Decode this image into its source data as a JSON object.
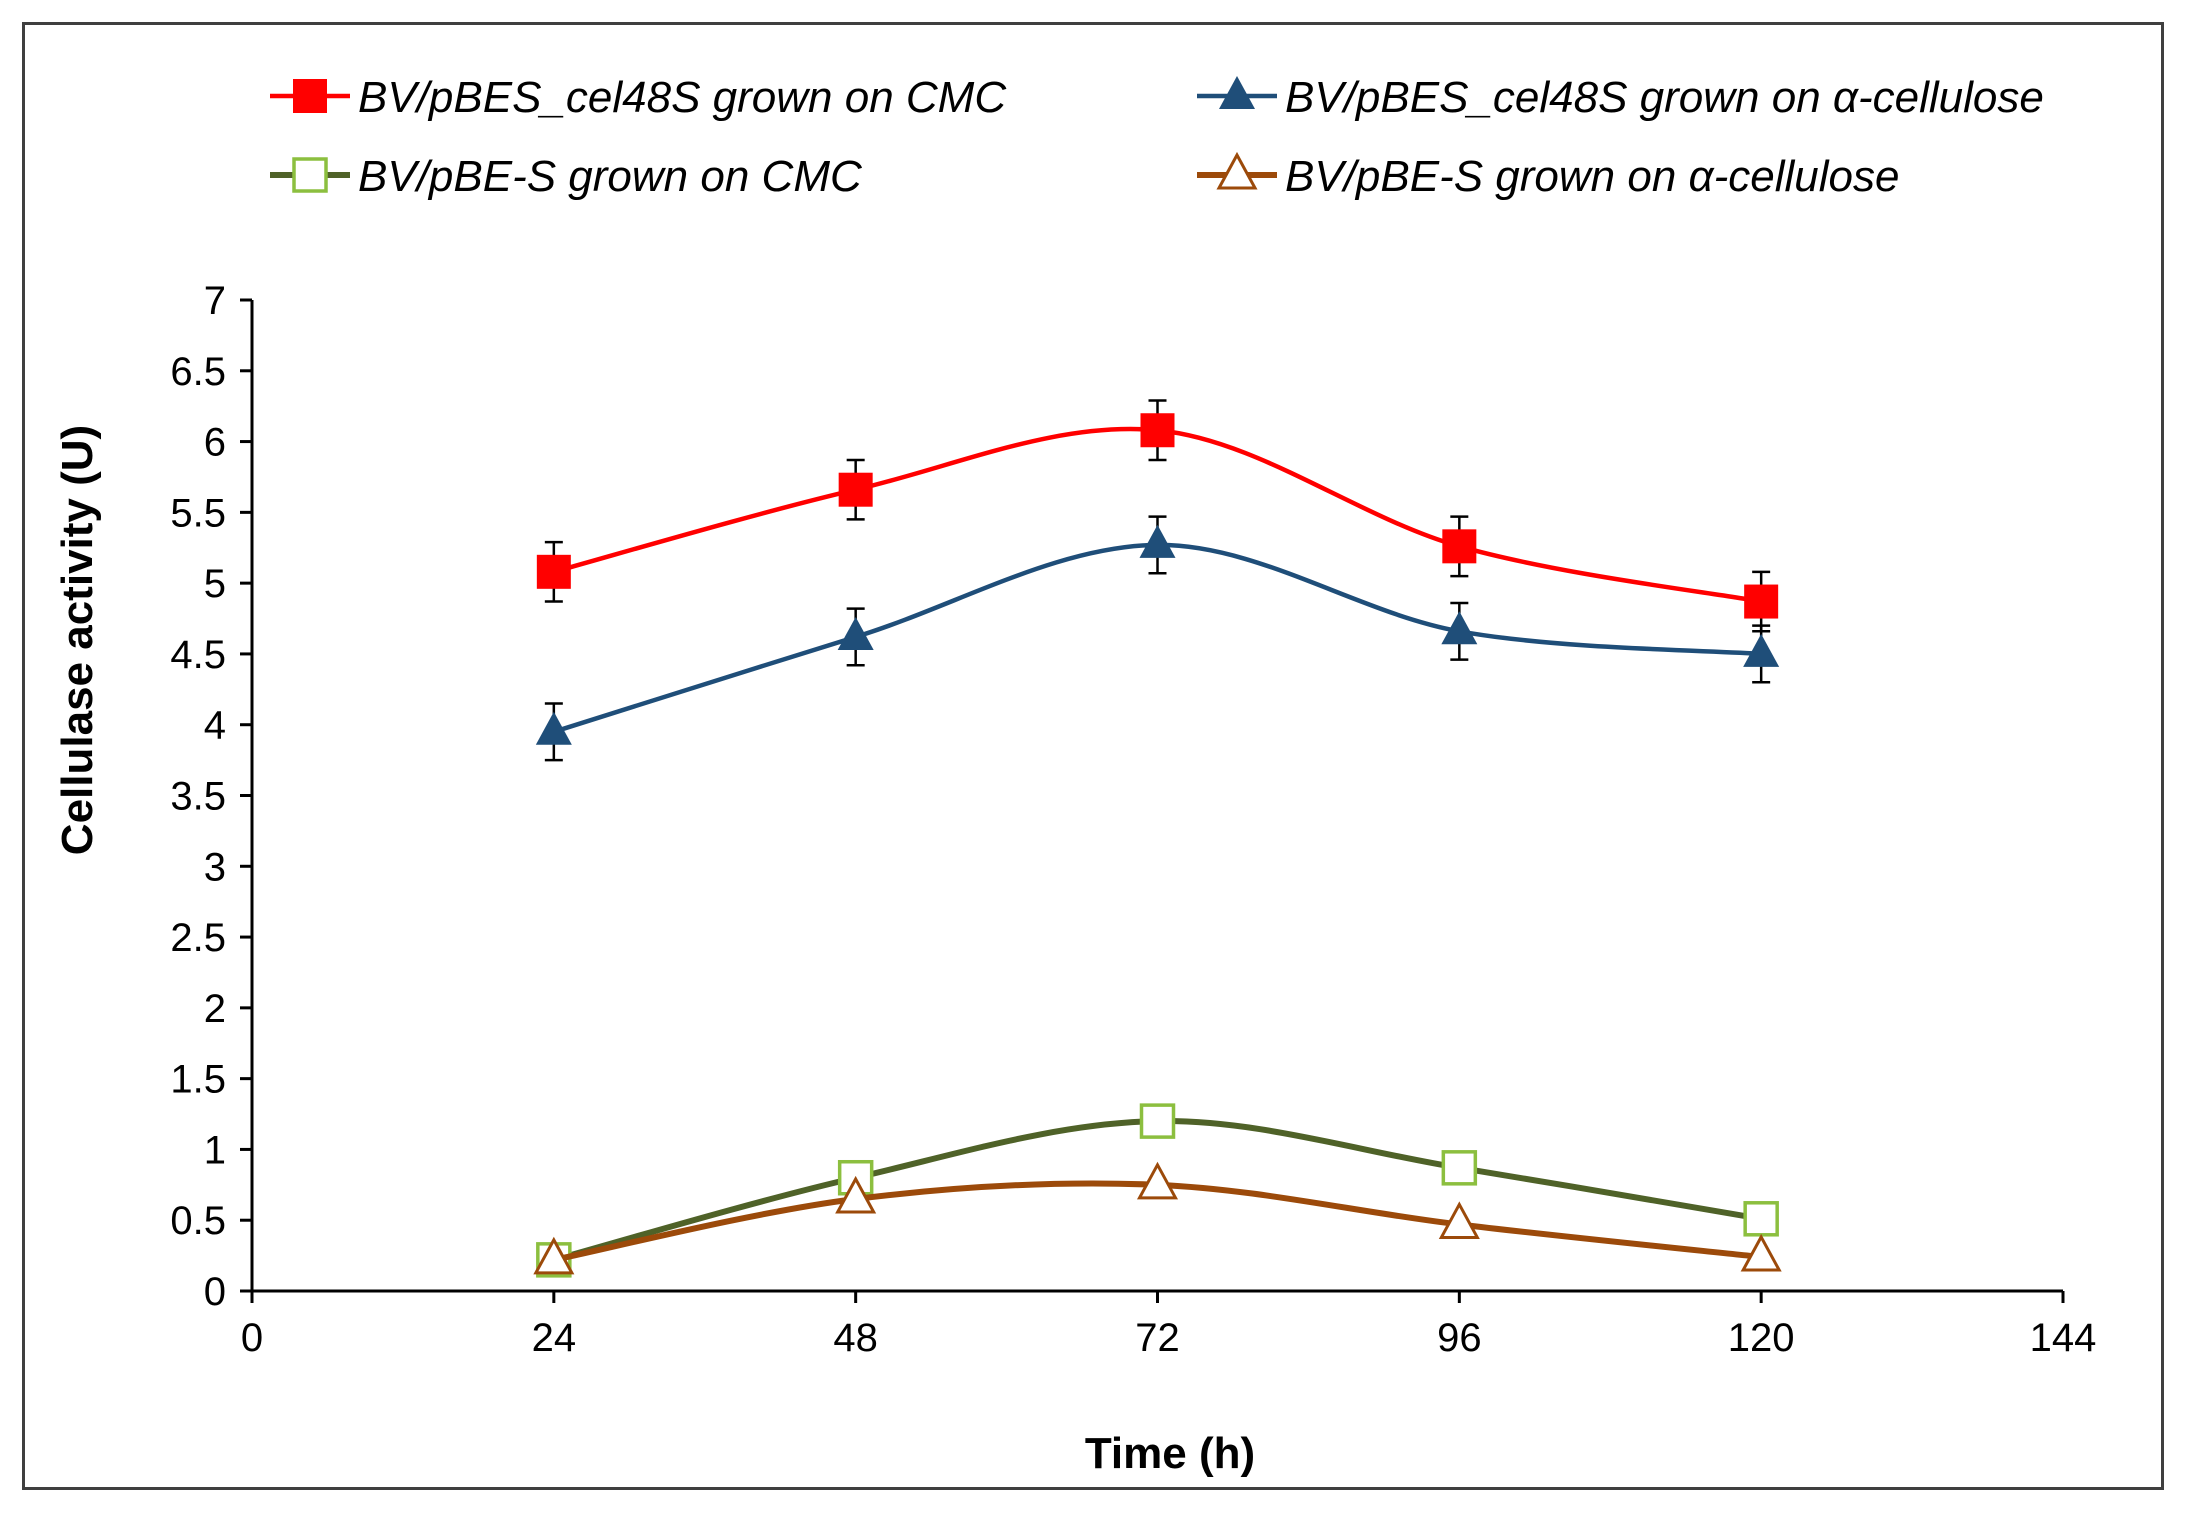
{
  "chart_data": {
    "type": "line",
    "title": "",
    "xlabel": "Time (h)",
    "ylabel": "Cellulase activity (U)",
    "xlim": [
      0,
      144
    ],
    "ylim": [
      0,
      7
    ],
    "xticks": [
      0,
      24,
      48,
      72,
      96,
      120,
      144
    ],
    "yticks": [
      0,
      0.5,
      1,
      1.5,
      2,
      2.5,
      3,
      3.5,
      4,
      4.5,
      5,
      5.5,
      6,
      6.5,
      7
    ],
    "xtick_labels": [
      "0",
      "24",
      "48",
      "72",
      "96",
      "120",
      "144"
    ],
    "ytick_labels": [
      "0",
      "0.5",
      "1",
      "1.5",
      "2",
      "2.5",
      "3",
      "3.5",
      "4",
      "4.5",
      "5",
      "5.5",
      "6",
      "6.5",
      "7"
    ],
    "grid": false,
    "legend_position": "top",
    "x": [
      24,
      48,
      72,
      96,
      120
    ],
    "series": [
      {
        "name": "BV/pBES_cel48S grown on CMC",
        "values": [
          5.08,
          5.66,
          6.08,
          5.26,
          4.87
        ],
        "errors": [
          0.21,
          0.21,
          0.21,
          0.21,
          0.21
        ],
        "color": "#ff0000",
        "marker": "square-filled"
      },
      {
        "name": "BV/pBES_cel48S grown on α-cellulose",
        "values": [
          3.95,
          4.62,
          5.27,
          4.66,
          4.5
        ],
        "errors": [
          0.2,
          0.2,
          0.2,
          0.2,
          0.2
        ],
        "color": "#1f4e79",
        "marker": "triangle-filled"
      },
      {
        "name": "BV/pBE-S grown on CMC",
        "values": [
          0.22,
          0.8,
          1.2,
          0.87,
          0.51
        ],
        "errors": null,
        "color": "#4f6228",
        "marker_color": "#8cbf3f",
        "marker": "square-open"
      },
      {
        "name": "BV/pBE-S grown on α-cellulose",
        "values": [
          0.22,
          0.65,
          0.75,
          0.47,
          0.24
        ],
        "errors": null,
        "color": "#9c4a0a",
        "marker": "triangle-open"
      }
    ]
  }
}
